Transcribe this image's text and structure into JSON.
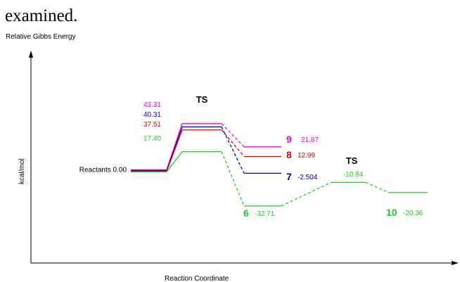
{
  "caption_text": "examined.",
  "chart_data": {
    "type": "line",
    "ylabel_top": "Relative Gibbs Energy",
    "ylabel": "kcal/mol",
    "xlabel": "Reaction Coordinate",
    "ylim": [
      -50,
      75
    ],
    "reactants": {
      "label": "Reactants",
      "value": 0.0,
      "value_text": "0.00"
    },
    "ts_labels": [
      "TS",
      "TS"
    ],
    "series": [
      {
        "name": "9",
        "color": "#ee00ee",
        "ts": 43.31,
        "ts_text": "43.31",
        "product": 21.87,
        "product_text": "21.87"
      },
      {
        "name": "7",
        "color": "#0000cc",
        "ts": 40.31,
        "ts_text": "40.31",
        "product": -2.504,
        "product_text": "-2.504"
      },
      {
        "name": "8",
        "color": "#dd0000",
        "ts": 37.51,
        "ts_text": "37.51",
        "product": 12.99,
        "product_text": "12.99"
      },
      {
        "name": "6",
        "color": "#22cc22",
        "ts": 17.4,
        "ts_text": "17.40",
        "product": -32.71,
        "product_text": "-32.71",
        "ts2": -10.94,
        "ts2_text": "-10.94",
        "product2_name": "10",
        "product2": -20.36,
        "product2_text": "-20.36"
      }
    ]
  }
}
